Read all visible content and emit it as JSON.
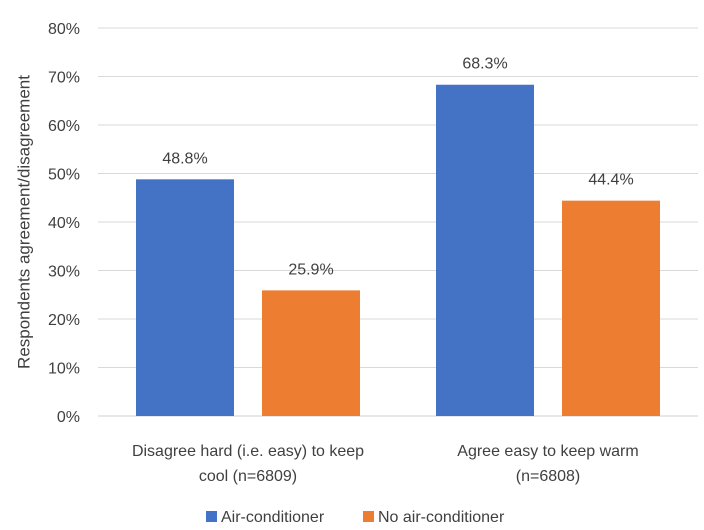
{
  "chart_data": {
    "type": "bar",
    "ylabel": "Respondents agreement/disagreement",
    "ylim": [
      0,
      80
    ],
    "yticks": [
      "0%",
      "10%",
      "20%",
      "30%",
      "40%",
      "50%",
      "60%",
      "70%",
      "80%"
    ],
    "categories": [
      [
        "Disagree hard (i.e. easy) to keep",
        "cool (n=6809)"
      ],
      [
        "Agree easy to keep warm",
        "(n=6808)"
      ]
    ],
    "series": [
      {
        "name": "Air-conditioner",
        "color": "#4472C4",
        "values": [
          48.8,
          68.3
        ],
        "labels": [
          "48.8%",
          "68.3%"
        ]
      },
      {
        "name": "No air-conditioner",
        "color": "#ED7D31",
        "values": [
          25.9,
          44.4
        ],
        "labels": [
          "25.9%",
          "44.4%"
        ]
      }
    ],
    "grid": true,
    "legend_position": "bottom"
  }
}
